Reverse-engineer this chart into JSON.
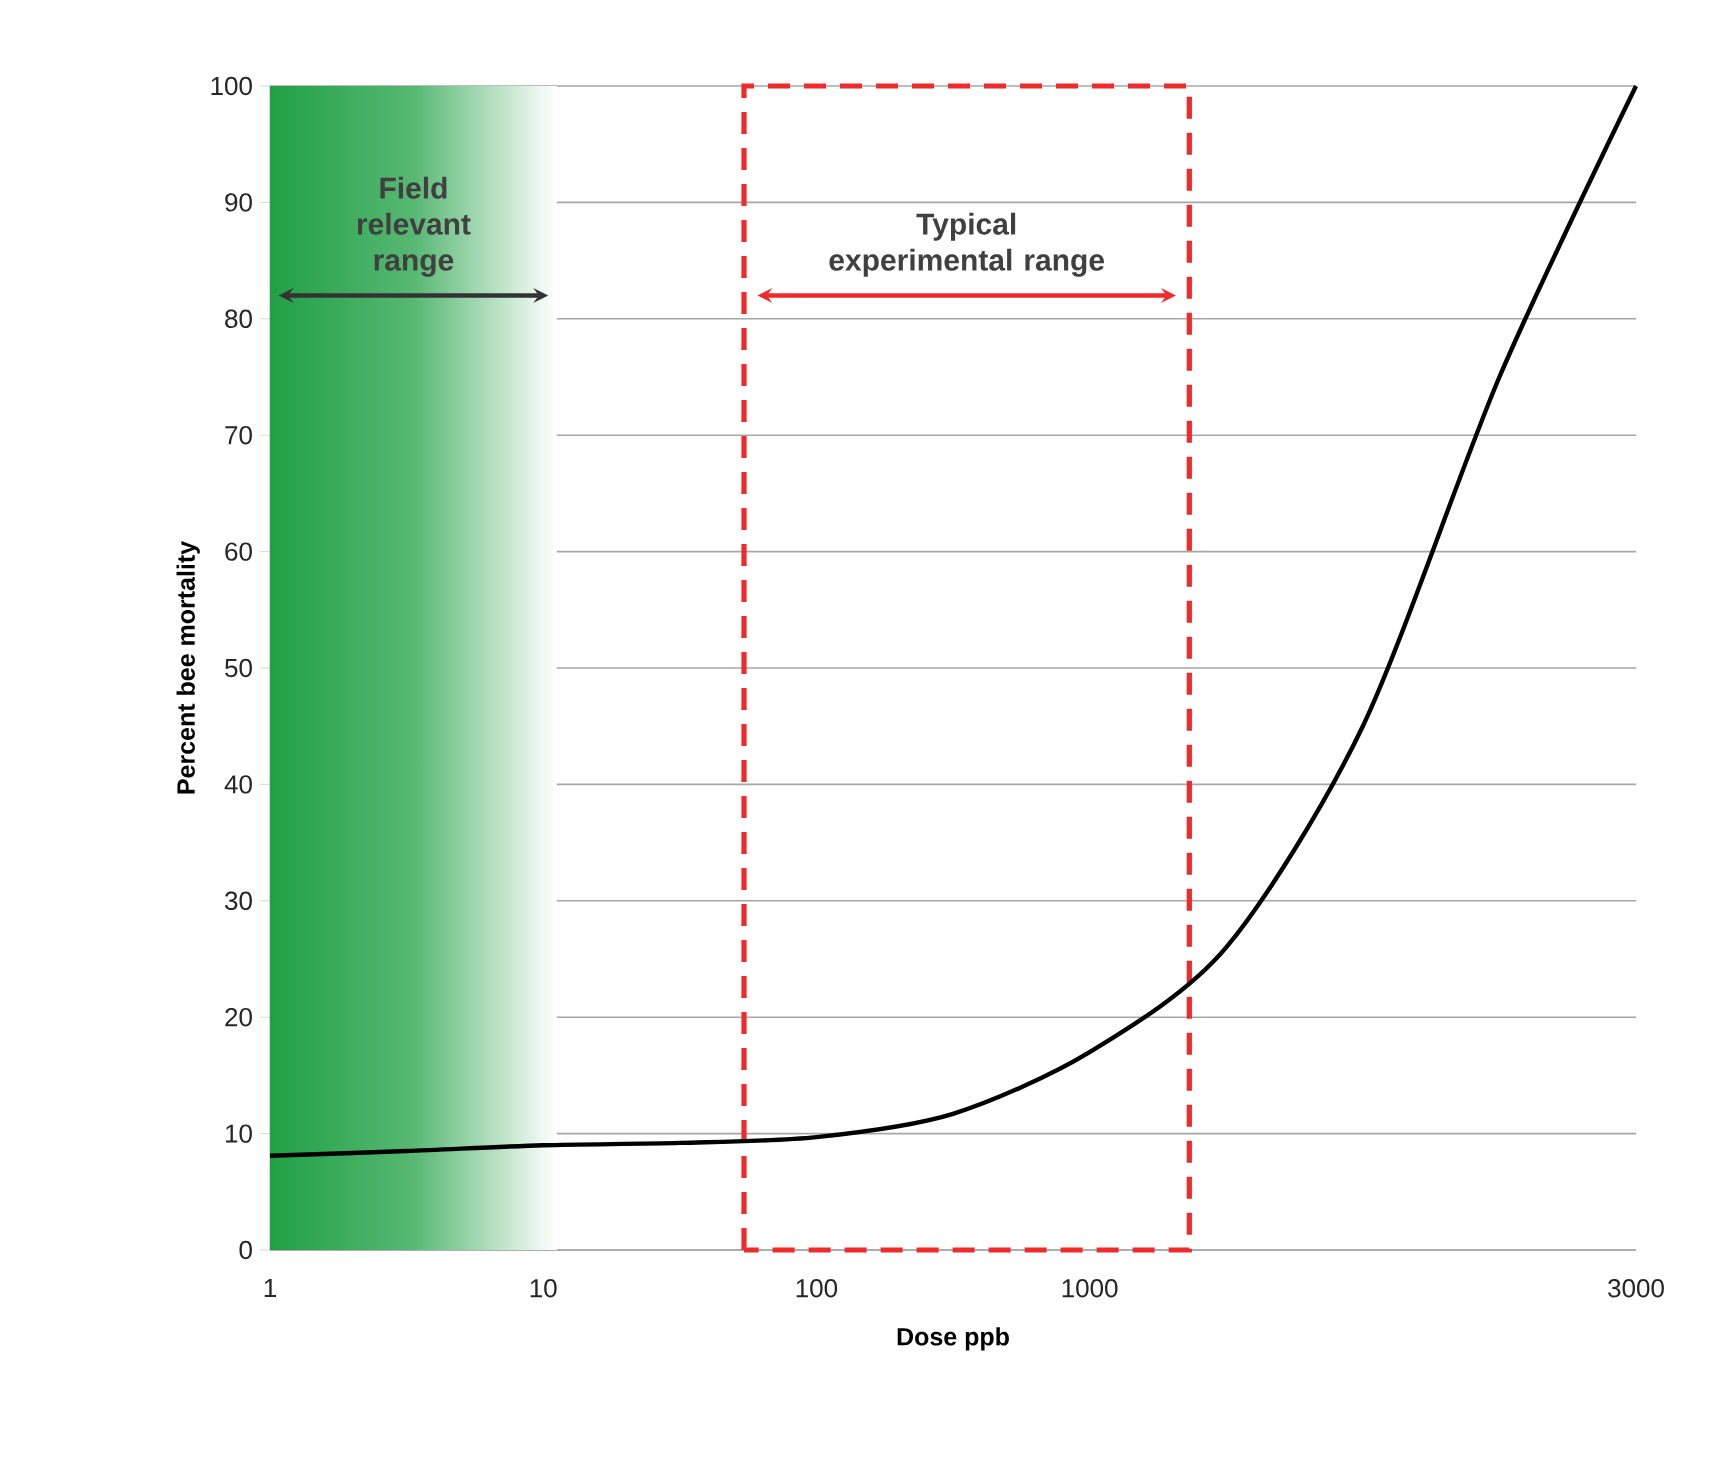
{
  "chart_data": {
    "type": "line",
    "xlabel": "Dose ppb",
    "ylabel": "Percent bee mortality",
    "categories": [
      "1",
      null,
      "10",
      null,
      "100",
      null,
      "1000",
      null,
      null,
      null,
      "3000"
    ],
    "series": [
      {
        "color": "#000000",
        "values": [
          8.1,
          8.5,
          9,
          9.2,
          9.7,
          11.7,
          17,
          26,
          45,
          75,
          100
        ]
      }
    ],
    "ylim": [
      0,
      100
    ],
    "yticks": [
      0,
      10,
      20,
      30,
      40,
      50,
      60,
      70,
      80,
      90,
      100
    ],
    "grid": "y",
    "annotations": [
      "Field relevant range",
      "Typical experimental range"
    ]
  }
}
